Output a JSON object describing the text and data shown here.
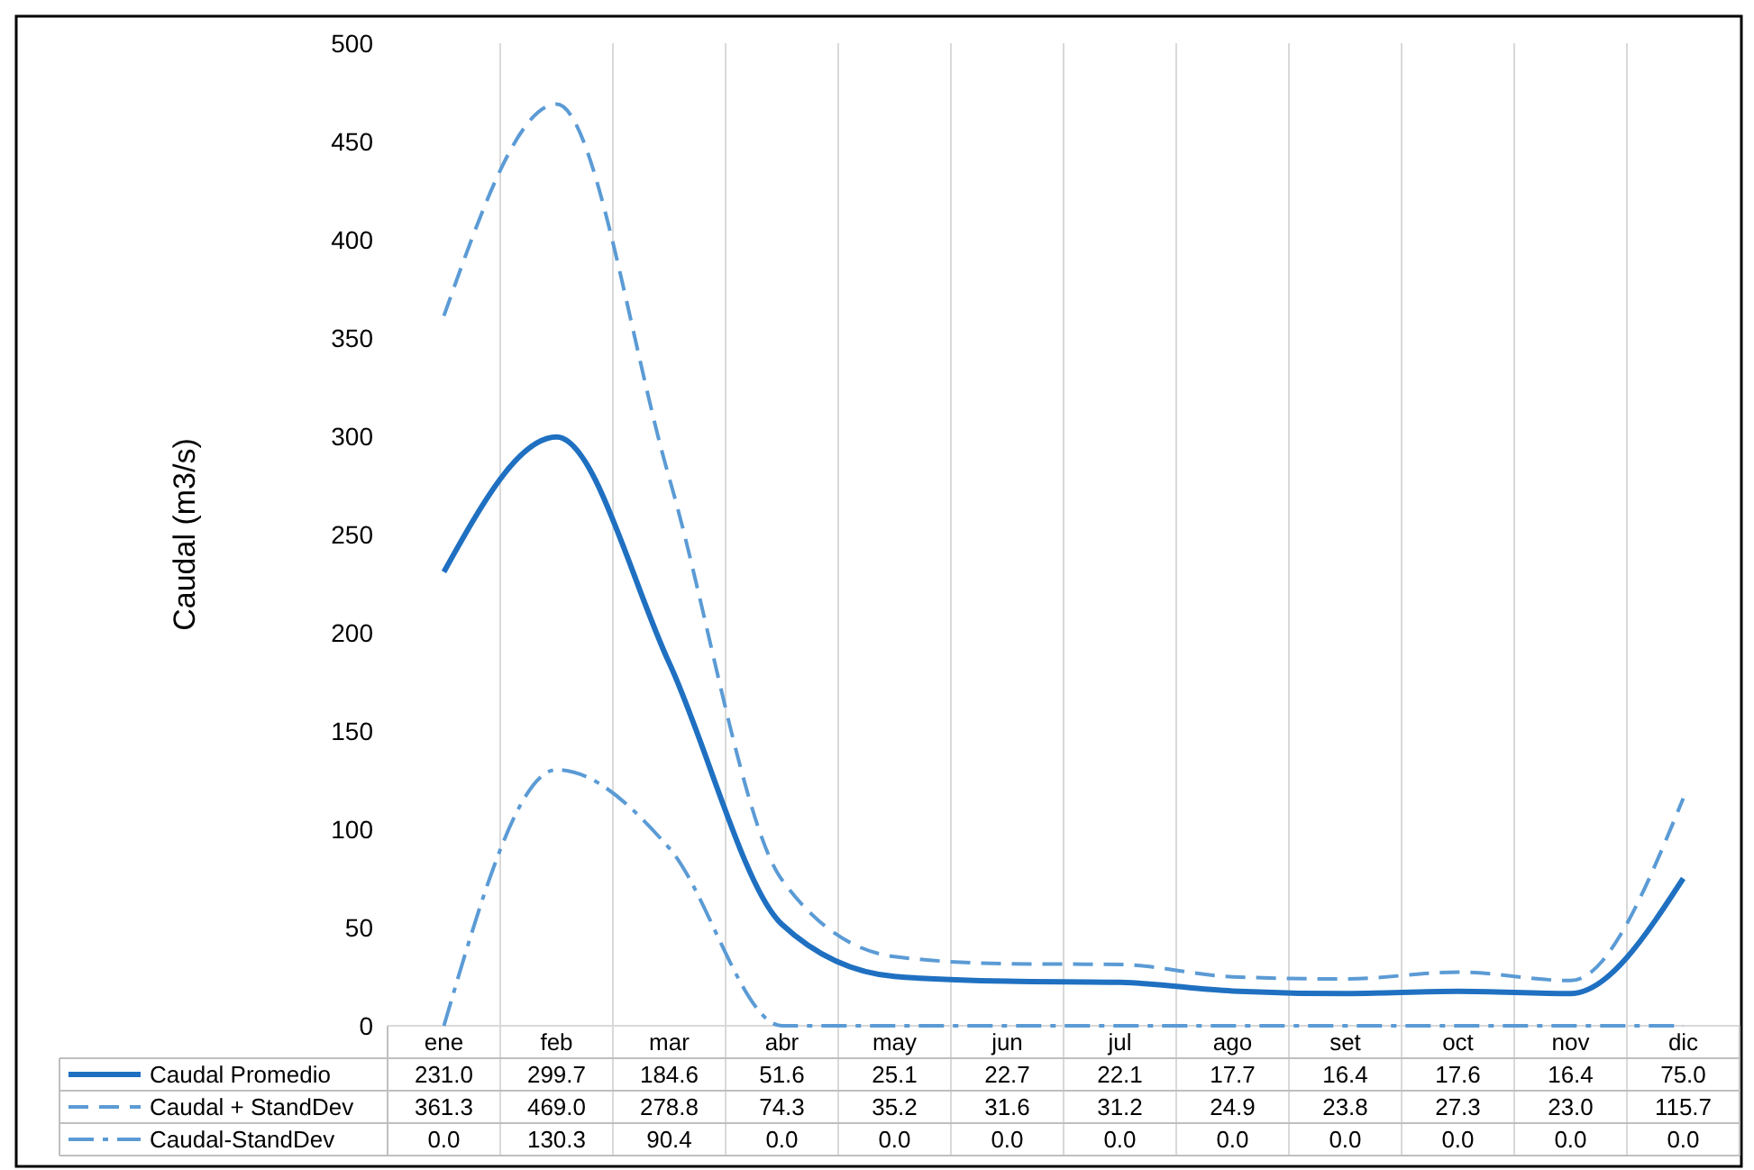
{
  "chart_data": {
    "type": "line",
    "ylabel": "Caudal (m3/s)",
    "categories": [
      "ene",
      "feb",
      "mar",
      "abr",
      "may",
      "jun",
      "jul",
      "ago",
      "set",
      "oct",
      "nov",
      "dic"
    ],
    "ylim": [
      0,
      500
    ],
    "yticks": [
      0,
      50,
      100,
      150,
      200,
      250,
      300,
      350,
      400,
      450,
      500
    ],
    "grid": "x",
    "legend": "bottom",
    "series": [
      {
        "name": "Caudal Promedio",
        "color": "#1f70c1",
        "line_style": "solid",
        "values": [
          231.0,
          299.7,
          184.6,
          51.6,
          25.1,
          22.7,
          22.1,
          17.7,
          16.4,
          17.6,
          16.4,
          75.0
        ],
        "value_labels": [
          "231.0",
          "299.7",
          "184.6",
          "51.6",
          "25.1",
          "22.7",
          "22.1",
          "17.7",
          "16.4",
          "17.6",
          "16.4",
          "75.0"
        ]
      },
      {
        "name": "Caudal + StandDev",
        "color": "#5b9bd5",
        "line_style": "dashed",
        "values": [
          361.3,
          469.0,
          278.8,
          74.3,
          35.2,
          31.6,
          31.2,
          24.9,
          23.8,
          27.3,
          23.0,
          115.7
        ],
        "value_labels": [
          "361.3",
          "469.0",
          "278.8",
          "74.3",
          "35.2",
          "31.6",
          "31.2",
          "24.9",
          "23.8",
          "27.3",
          "23.0",
          "115.7"
        ]
      },
      {
        "name": "Caudal-StandDev",
        "color": "#5b9bd5",
        "line_style": "dashdot",
        "values": [
          0.0,
          130.3,
          90.4,
          0.0,
          0.0,
          0.0,
          0.0,
          0.0,
          0.0,
          0.0,
          0.0,
          0.0
        ],
        "value_labels": [
          "0.0",
          "130.3",
          "90.4",
          "0.0",
          "0.0",
          "0.0",
          "0.0",
          "0.0",
          "0.0",
          "0.0",
          "0.0",
          "0.0"
        ]
      }
    ]
  }
}
